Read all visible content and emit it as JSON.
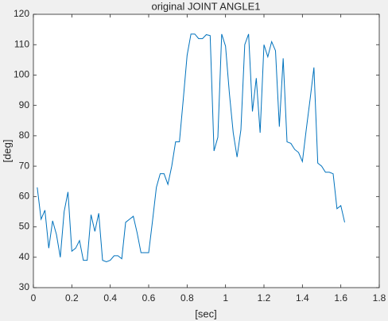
{
  "chart_data": {
    "type": "line",
    "title": "original JOINT ANGLE1",
    "x_label": "[sec]",
    "y_label": "[deg]",
    "x": [
      0.02,
      0.04,
      0.06,
      0.08,
      0.1,
      0.12,
      0.14,
      0.16,
      0.18,
      0.2,
      0.22,
      0.24,
      0.26,
      0.28,
      0.3,
      0.32,
      0.34,
      0.36,
      0.38,
      0.4,
      0.42,
      0.44,
      0.46,
      0.48,
      0.5,
      0.52,
      0.54,
      0.56,
      0.58,
      0.6,
      0.62,
      0.64,
      0.66,
      0.68,
      0.7,
      0.72,
      0.74,
      0.76,
      0.78,
      0.8,
      0.82,
      0.84,
      0.86,
      0.88,
      0.9,
      0.92,
      0.94,
      0.96,
      0.98,
      1.0,
      1.02,
      1.04,
      1.06,
      1.08,
      1.1,
      1.12,
      1.14,
      1.16,
      1.18,
      1.2,
      1.22,
      1.24,
      1.26,
      1.28,
      1.3,
      1.32,
      1.34,
      1.36,
      1.38,
      1.4,
      1.42,
      1.44,
      1.46,
      1.48,
      1.5,
      1.52,
      1.54,
      1.56,
      1.58,
      1.6,
      1.62
    ],
    "series": [
      {
        "name": "JOINT ANGLE1",
        "color": "#0072bd",
        "values": [
          63,
          52.5,
          55.5,
          43,
          52,
          47.5,
          40,
          55,
          61.5,
          42,
          43,
          45.5,
          39,
          39,
          54,
          48.5,
          54.5,
          39,
          38.5,
          39,
          40.5,
          40.5,
          39.5,
          51.5,
          52.5,
          53.5,
          48,
          41.5,
          41.5,
          41.5,
          52,
          63,
          67.5,
          67.5,
          64,
          70,
          78,
          78,
          92,
          106.5,
          113.5,
          113.5,
          112,
          112,
          113.3,
          113,
          75,
          79.5,
          113.5,
          109.5,
          94,
          81,
          73,
          82,
          110,
          113.5,
          88,
          99,
          81,
          110,
          106,
          111,
          108,
          83,
          105.5,
          78,
          77.5,
          75.5,
          74.5,
          71.5,
          82,
          92,
          102.5,
          71,
          70,
          68,
          68,
          67.5,
          56,
          57,
          51.5
        ]
      }
    ],
    "xlim": [
      0,
      1.8
    ],
    "xticks": [
      0,
      0.2,
      0.4,
      0.6,
      0.8,
      1,
      1.2,
      1.4,
      1.6,
      1.8
    ],
    "ylim": [
      30,
      120
    ],
    "yticks": [
      30,
      40,
      50,
      60,
      70,
      80,
      90,
      100,
      110,
      120
    ],
    "grid": false
  }
}
